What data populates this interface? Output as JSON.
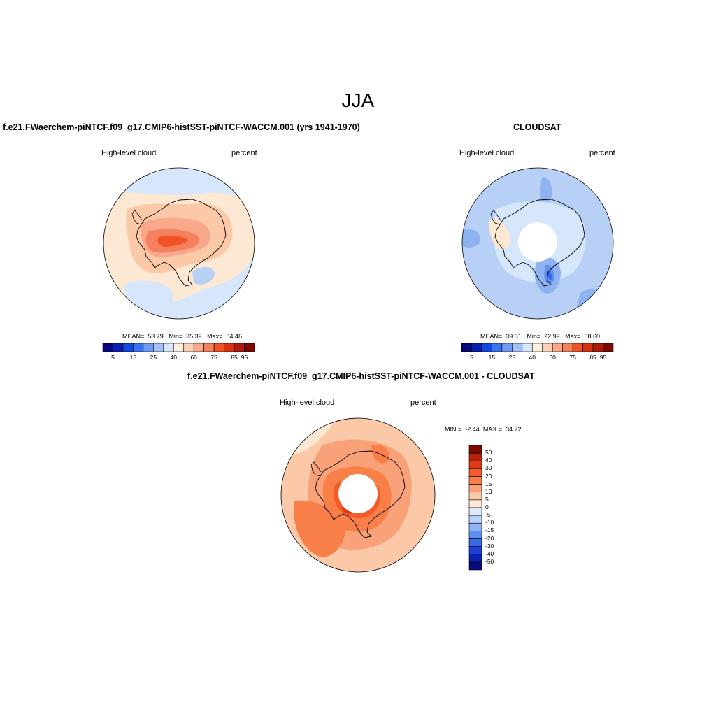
{
  "figure": {
    "title": "JJA"
  },
  "panels": {
    "model": {
      "title": "f.e21.FWaerchem-piNTCF.f09_g17.CMIP6-histSST-piNTCF-WACCM.001 (yrs 1941-1970)",
      "left_label": "High-level cloud",
      "right_label": "percent",
      "stats": {
        "mean_label": "MEAN=",
        "mean": "53.79",
        "min_label": "Min=",
        "min": "35.39",
        "max_label": "Max=",
        "max": "84.46"
      }
    },
    "obs": {
      "title": "CLOUDSAT",
      "left_label": "High-level cloud",
      "right_label": "percent",
      "stats": {
        "mean_label": "MEAN=",
        "mean": "39.31",
        "min_label": "Min=",
        "min": "22.99",
        "max_label": "Max=",
        "max": "58.60"
      }
    },
    "diff": {
      "title": "f.e21.FWaerchem-piNTCF.f09_g17.CMIP6-histSST-piNTCF-WACCM.001 - CLOUDSAT",
      "left_label": "High-level cloud",
      "right_label": "percent",
      "stats": {
        "min_label": "MIN =",
        "min": "-2.44",
        "max_label": "MAX =",
        "max": "34.72"
      }
    }
  },
  "colorbars": {
    "horizontal": {
      "colors": [
        "#08087a",
        "#0a1fb0",
        "#1446e0",
        "#3b72f2",
        "#6f9bf2",
        "#a3bff5",
        "#d6e6fb",
        "#fdf0e0",
        "#fcd2b7",
        "#f9a98a",
        "#f5805f",
        "#ef5326",
        "#d63212",
        "#a91b0a",
        "#7a0a04"
      ],
      "tick_labels": [
        "5",
        "15",
        "25",
        "40",
        "60",
        "75",
        "85",
        "95"
      ],
      "tick_boundaries": [
        1,
        3,
        5,
        7,
        9,
        11,
        13,
        14
      ]
    },
    "vertical": {
      "colors_top_to_bottom": [
        "#7a0a04",
        "#b5200c",
        "#e03a14",
        "#f65a28",
        "#f88048",
        "#f9a27a",
        "#fbc8a8",
        "#fde8d4",
        "#dbe9fb",
        "#b8d0f6",
        "#8fb2f3",
        "#5f8ff0",
        "#3868e8",
        "#1a42d6",
        "#0a22b0",
        "#080a80"
      ],
      "tick_labels": [
        "50",
        "40",
        "30",
        "20",
        "15",
        "10",
        "5",
        "0",
        "-5",
        "-10",
        "-15",
        "-20",
        "-30",
        "-40",
        "-50"
      ]
    }
  },
  "map_colors": {
    "model": {
      "background": "#d6e6fb",
      "c1": "#fde8d4",
      "c2": "#fbc8a8",
      "c3": "#f9a98a",
      "c4": "#f5805f",
      "c5": "#ef5326",
      "blue": "#b8d0f6"
    },
    "obs": {
      "background": "#b8d0f6",
      "light": "#d6e6fb",
      "mid": "#8fb2f3",
      "dark": "#5f8ff0",
      "deep": "#3868e8",
      "warm": "#fde8d4"
    },
    "diff": {
      "background": "#fbc8a8",
      "c1": "#fde8d4",
      "c2": "#f9a27a",
      "c3": "#f88048",
      "c4": "#f65a28",
      "c5": "#e03a14"
    }
  }
}
